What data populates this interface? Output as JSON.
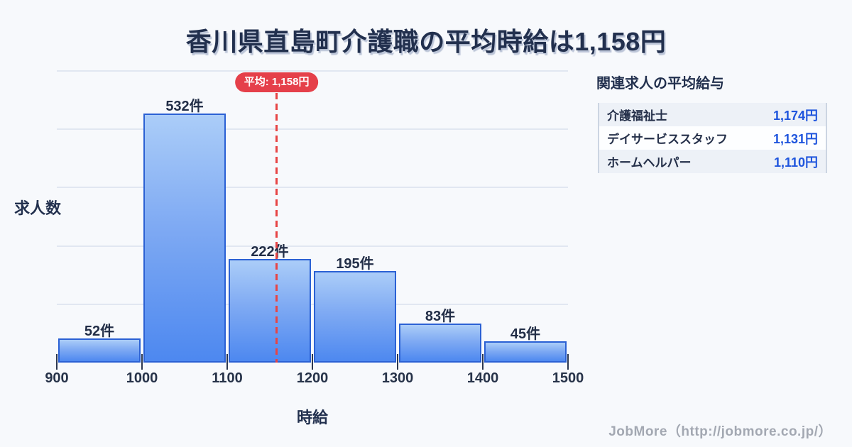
{
  "title": "香川県直島町介護職の平均時給は1,158円",
  "chart_data": {
    "type": "bar",
    "title": "香川県直島町介護職の平均時給は1,158円",
    "xlabel": "時給",
    "ylabel": "求人数",
    "categories": [
      "900-1000",
      "1000-1100",
      "1100-1200",
      "1200-1300",
      "1300-1400",
      "1400-1500"
    ],
    "values": [
      52,
      532,
      222,
      195,
      83,
      45
    ],
    "bar_labels": [
      "52件",
      "532件",
      "222件",
      "195件",
      "83件",
      "45件"
    ],
    "x_ticks": [
      "900",
      "1000",
      "1100",
      "1200",
      "1300",
      "1400",
      "1500"
    ],
    "x_range": [
      900,
      1500
    ],
    "ylim": [
      0,
      623
    ],
    "grid": "horizontal, 5 unlabeled lines",
    "legend_position": "none",
    "average": {
      "value": 1158,
      "label": "平均: 1,158円"
    }
  },
  "side_panel": {
    "header": "関連求人の平均給与",
    "rows": [
      {
        "label": "介護福祉士",
        "value": "1,174円"
      },
      {
        "label": "デイサービススタッフ",
        "value": "1,131円"
      },
      {
        "label": "ホームヘルパー",
        "value": "1,110円"
      }
    ]
  },
  "footer": {
    "credit": "JobMore（http://jobmore.co.jp/）"
  },
  "colors": {
    "background": "#f7f9fc",
    "title_text": "#22304e",
    "bar_border": "#2b61d4",
    "bar_gradient_top": "#abcdf8",
    "bar_gradient_bottom": "#4d88f0",
    "gridline": "#e1e7f1",
    "accent_red": "#e5404a",
    "panel_value_blue": "#1f55dd",
    "panel_row_alt": "#edf1f7",
    "footer_gray": "#a3a8b2"
  }
}
